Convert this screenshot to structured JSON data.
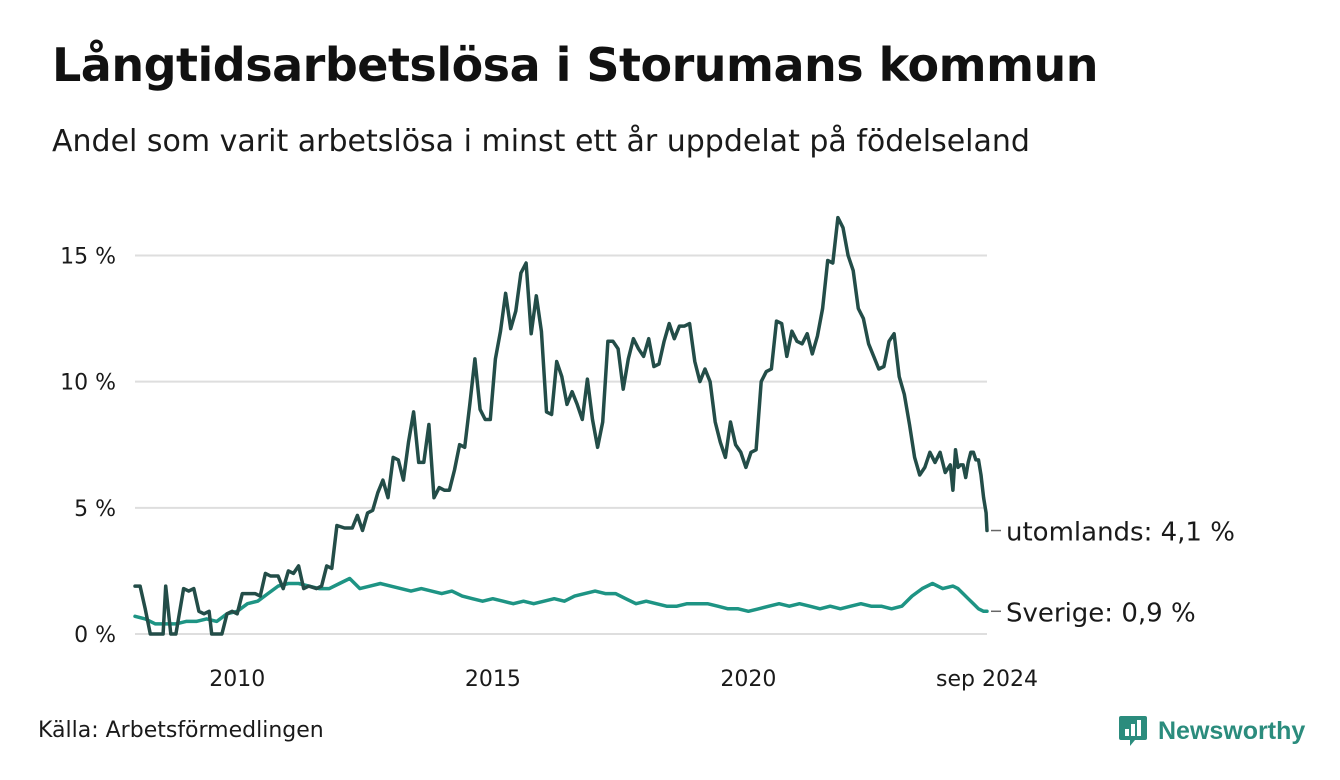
{
  "title": "Långtidsarbetslösa i Storumans kommun",
  "subtitle": "Andel som varit arbetslösa i minst ett år uppdelat på födelseland",
  "source": "Källa: Arbetsförmedlingen",
  "brand": {
    "name": "Newsworthy",
    "icon": "newsworthy-logo-icon",
    "color": "#2b8c7d"
  },
  "chart_data": {
    "type": "line",
    "grid": true,
    "xlim": [
      2008.0,
      2024.667
    ],
    "ylim": [
      0,
      17
    ],
    "yticks": [
      {
        "value": 0,
        "label": "0 %"
      },
      {
        "value": 5,
        "label": "5 %"
      },
      {
        "value": 10,
        "label": "10 %"
      },
      {
        "value": 15,
        "label": "15 %"
      }
    ],
    "xticks": [
      {
        "value": 2010,
        "label": "2010"
      },
      {
        "value": 2015,
        "label": "2015"
      },
      {
        "value": 2020,
        "label": "2020"
      },
      {
        "value": 2024.667,
        "label": "sep 2024"
      }
    ],
    "series": [
      {
        "name": "utomlands",
        "end_label": "utomlands: 4,1 %",
        "color": "#234d48",
        "points": [
          [
            2008.0,
            1.9
          ],
          [
            2008.1,
            1.9
          ],
          [
            2008.2,
            1.0
          ],
          [
            2008.3,
            0.0
          ],
          [
            2008.45,
            0.0
          ],
          [
            2008.55,
            0.0
          ],
          [
            2008.6,
            1.9
          ],
          [
            2008.7,
            0.0
          ],
          [
            2008.8,
            0.0
          ],
          [
            2008.95,
            1.8
          ],
          [
            2009.05,
            1.7
          ],
          [
            2009.15,
            1.8
          ],
          [
            2009.25,
            0.9
          ],
          [
            2009.35,
            0.8
          ],
          [
            2009.45,
            0.9
          ],
          [
            2009.5,
            0.0
          ],
          [
            2009.6,
            0.0
          ],
          [
            2009.7,
            0.0
          ],
          [
            2009.8,
            0.8
          ],
          [
            2009.9,
            0.9
          ],
          [
            2010.0,
            0.8
          ],
          [
            2010.1,
            1.6
          ],
          [
            2010.25,
            1.6
          ],
          [
            2010.35,
            1.6
          ],
          [
            2010.45,
            1.5
          ],
          [
            2010.55,
            2.4
          ],
          [
            2010.65,
            2.3
          ],
          [
            2010.8,
            2.3
          ],
          [
            2010.9,
            1.8
          ],
          [
            2011.0,
            2.5
          ],
          [
            2011.1,
            2.4
          ],
          [
            2011.2,
            2.7
          ],
          [
            2011.3,
            1.8
          ],
          [
            2011.4,
            1.9
          ],
          [
            2011.55,
            1.8
          ],
          [
            2011.65,
            1.9
          ],
          [
            2011.75,
            2.7
          ],
          [
            2011.85,
            2.6
          ],
          [
            2011.95,
            4.3
          ],
          [
            2012.1,
            4.2
          ],
          [
            2012.25,
            4.2
          ],
          [
            2012.35,
            4.7
          ],
          [
            2012.45,
            4.1
          ],
          [
            2012.55,
            4.8
          ],
          [
            2012.65,
            4.9
          ],
          [
            2012.75,
            5.6
          ],
          [
            2012.85,
            6.1
          ],
          [
            2012.95,
            5.4
          ],
          [
            2013.05,
            7.0
          ],
          [
            2013.15,
            6.9
          ],
          [
            2013.25,
            6.1
          ],
          [
            2013.35,
            7.6
          ],
          [
            2013.45,
            8.8
          ],
          [
            2013.55,
            6.8
          ],
          [
            2013.65,
            6.8
          ],
          [
            2013.75,
            8.3
          ],
          [
            2013.85,
            5.4
          ],
          [
            2013.95,
            5.8
          ],
          [
            2014.05,
            5.7
          ],
          [
            2014.15,
            5.7
          ],
          [
            2014.25,
            6.5
          ],
          [
            2014.35,
            7.5
          ],
          [
            2014.45,
            7.4
          ],
          [
            2014.55,
            9.1
          ],
          [
            2014.65,
            10.9
          ],
          [
            2014.75,
            8.9
          ],
          [
            2014.85,
            8.5
          ],
          [
            2014.95,
            8.5
          ],
          [
            2015.05,
            10.9
          ],
          [
            2015.15,
            12.0
          ],
          [
            2015.25,
            13.5
          ],
          [
            2015.35,
            12.1
          ],
          [
            2015.45,
            12.8
          ],
          [
            2015.55,
            14.3
          ],
          [
            2015.65,
            14.7
          ],
          [
            2015.75,
            11.9
          ],
          [
            2015.85,
            13.4
          ],
          [
            2015.95,
            12.0
          ],
          [
            2016.05,
            8.8
          ],
          [
            2016.15,
            8.7
          ],
          [
            2016.25,
            10.8
          ],
          [
            2016.35,
            10.2
          ],
          [
            2016.45,
            9.1
          ],
          [
            2016.55,
            9.6
          ],
          [
            2016.65,
            9.1
          ],
          [
            2016.75,
            8.5
          ],
          [
            2016.85,
            10.1
          ],
          [
            2016.95,
            8.5
          ],
          [
            2017.05,
            7.4
          ],
          [
            2017.15,
            8.4
          ],
          [
            2017.25,
            11.6
          ],
          [
            2017.35,
            11.6
          ],
          [
            2017.45,
            11.3
          ],
          [
            2017.55,
            9.7
          ],
          [
            2017.65,
            10.9
          ],
          [
            2017.75,
            11.7
          ],
          [
            2017.85,
            11.3
          ],
          [
            2017.95,
            11.0
          ],
          [
            2018.05,
            11.7
          ],
          [
            2018.15,
            10.6
          ],
          [
            2018.25,
            10.7
          ],
          [
            2018.35,
            11.6
          ],
          [
            2018.45,
            12.3
          ],
          [
            2018.55,
            11.7
          ],
          [
            2018.65,
            12.2
          ],
          [
            2018.75,
            12.2
          ],
          [
            2018.85,
            12.3
          ],
          [
            2018.95,
            10.8
          ],
          [
            2019.05,
            10.0
          ],
          [
            2019.15,
            10.5
          ],
          [
            2019.25,
            10.0
          ],
          [
            2019.35,
            8.4
          ],
          [
            2019.45,
            7.6
          ],
          [
            2019.55,
            7.0
          ],
          [
            2019.65,
            8.4
          ],
          [
            2019.75,
            7.5
          ],
          [
            2019.85,
            7.2
          ],
          [
            2019.95,
            6.6
          ],
          [
            2020.05,
            7.2
          ],
          [
            2020.15,
            7.3
          ],
          [
            2020.25,
            10.0
          ],
          [
            2020.35,
            10.4
          ],
          [
            2020.45,
            10.5
          ],
          [
            2020.55,
            12.4
          ],
          [
            2020.65,
            12.3
          ],
          [
            2020.75,
            11.0
          ],
          [
            2020.85,
            12.0
          ],
          [
            2020.95,
            11.6
          ],
          [
            2021.05,
            11.5
          ],
          [
            2021.15,
            11.9
          ],
          [
            2021.25,
            11.1
          ],
          [
            2021.35,
            11.8
          ],
          [
            2021.45,
            12.9
          ],
          [
            2021.55,
            14.8
          ],
          [
            2021.65,
            14.7
          ],
          [
            2021.75,
            16.5
          ],
          [
            2021.85,
            16.1
          ],
          [
            2021.95,
            15.0
          ],
          [
            2022.05,
            14.4
          ],
          [
            2022.15,
            12.9
          ],
          [
            2022.25,
            12.5
          ],
          [
            2022.35,
            11.5
          ],
          [
            2022.45,
            11.0
          ],
          [
            2022.55,
            10.5
          ],
          [
            2022.65,
            10.6
          ],
          [
            2022.75,
            11.6
          ],
          [
            2022.85,
            11.9
          ],
          [
            2022.95,
            10.2
          ],
          [
            2023.05,
            9.5
          ],
          [
            2023.15,
            8.3
          ],
          [
            2023.25,
            7.0
          ],
          [
            2023.35,
            6.3
          ],
          [
            2023.45,
            6.6
          ],
          [
            2023.55,
            7.2
          ],
          [
            2023.65,
            6.8
          ],
          [
            2023.75,
            7.2
          ],
          [
            2023.85,
            6.4
          ],
          [
            2023.95,
            6.7
          ],
          [
            2024.0,
            5.7
          ],
          [
            2024.05,
            7.3
          ],
          [
            2024.1,
            6.6
          ],
          [
            2024.15,
            6.7
          ],
          [
            2024.2,
            6.7
          ],
          [
            2024.25,
            6.2
          ],
          [
            2024.3,
            6.8
          ],
          [
            2024.35,
            7.2
          ],
          [
            2024.4,
            7.2
          ],
          [
            2024.45,
            6.9
          ],
          [
            2024.5,
            6.9
          ],
          [
            2024.55,
            6.3
          ],
          [
            2024.6,
            5.4
          ],
          [
            2024.65,
            4.8
          ],
          [
            2024.667,
            4.1
          ]
        ]
      },
      {
        "name": "Sverige",
        "end_label": "Sverige: 0,9 %",
        "color": "#1e9484",
        "points": [
          [
            2008.0,
            0.7
          ],
          [
            2008.2,
            0.6
          ],
          [
            2008.4,
            0.4
          ],
          [
            2008.6,
            0.4
          ],
          [
            2008.8,
            0.4
          ],
          [
            2009.0,
            0.5
          ],
          [
            2009.2,
            0.5
          ],
          [
            2009.4,
            0.6
          ],
          [
            2009.6,
            0.5
          ],
          [
            2009.8,
            0.8
          ],
          [
            2010.0,
            0.9
          ],
          [
            2010.2,
            1.2
          ],
          [
            2010.4,
            1.3
          ],
          [
            2010.6,
            1.6
          ],
          [
            2010.8,
            1.9
          ],
          [
            2011.0,
            2.0
          ],
          [
            2011.2,
            2.0
          ],
          [
            2011.4,
            1.9
          ],
          [
            2011.6,
            1.8
          ],
          [
            2011.8,
            1.8
          ],
          [
            2012.0,
            2.0
          ],
          [
            2012.2,
            2.2
          ],
          [
            2012.4,
            1.8
          ],
          [
            2012.6,
            1.9
          ],
          [
            2012.8,
            2.0
          ],
          [
            2013.0,
            1.9
          ],
          [
            2013.2,
            1.8
          ],
          [
            2013.4,
            1.7
          ],
          [
            2013.6,
            1.8
          ],
          [
            2013.8,
            1.7
          ],
          [
            2014.0,
            1.6
          ],
          [
            2014.2,
            1.7
          ],
          [
            2014.4,
            1.5
          ],
          [
            2014.6,
            1.4
          ],
          [
            2014.8,
            1.3
          ],
          [
            2015.0,
            1.4
          ],
          [
            2015.2,
            1.3
          ],
          [
            2015.4,
            1.2
          ],
          [
            2015.6,
            1.3
          ],
          [
            2015.8,
            1.2
          ],
          [
            2016.0,
            1.3
          ],
          [
            2016.2,
            1.4
          ],
          [
            2016.4,
            1.3
          ],
          [
            2016.6,
            1.5
          ],
          [
            2016.8,
            1.6
          ],
          [
            2017.0,
            1.7
          ],
          [
            2017.2,
            1.6
          ],
          [
            2017.4,
            1.6
          ],
          [
            2017.6,
            1.4
          ],
          [
            2017.8,
            1.2
          ],
          [
            2018.0,
            1.3
          ],
          [
            2018.2,
            1.2
          ],
          [
            2018.4,
            1.1
          ],
          [
            2018.6,
            1.1
          ],
          [
            2018.8,
            1.2
          ],
          [
            2019.0,
            1.2
          ],
          [
            2019.2,
            1.2
          ],
          [
            2019.4,
            1.1
          ],
          [
            2019.6,
            1.0
          ],
          [
            2019.8,
            1.0
          ],
          [
            2020.0,
            0.9
          ],
          [
            2020.2,
            1.0
          ],
          [
            2020.4,
            1.1
          ],
          [
            2020.6,
            1.2
          ],
          [
            2020.8,
            1.1
          ],
          [
            2021.0,
            1.2
          ],
          [
            2021.2,
            1.1
          ],
          [
            2021.4,
            1.0
          ],
          [
            2021.6,
            1.1
          ],
          [
            2021.8,
            1.0
          ],
          [
            2022.0,
            1.1
          ],
          [
            2022.2,
            1.2
          ],
          [
            2022.4,
            1.1
          ],
          [
            2022.6,
            1.1
          ],
          [
            2022.8,
            1.0
          ],
          [
            2023.0,
            1.1
          ],
          [
            2023.2,
            1.5
          ],
          [
            2023.4,
            1.8
          ],
          [
            2023.6,
            2.0
          ],
          [
            2023.8,
            1.8
          ],
          [
            2024.0,
            1.9
          ],
          [
            2024.1,
            1.8
          ],
          [
            2024.2,
            1.6
          ],
          [
            2024.3,
            1.4
          ],
          [
            2024.4,
            1.2
          ],
          [
            2024.5,
            1.0
          ],
          [
            2024.6,
            0.9
          ],
          [
            2024.667,
            0.9
          ]
        ]
      }
    ]
  }
}
